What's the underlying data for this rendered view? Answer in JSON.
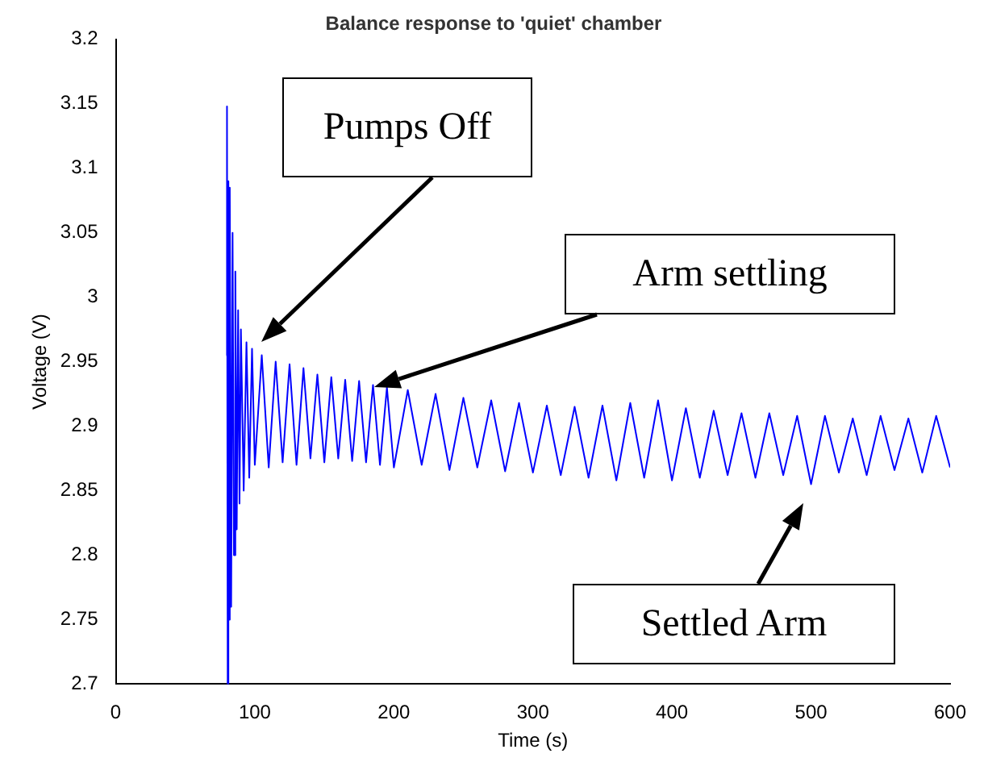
{
  "chart_data": {
    "type": "line",
    "title": "Balance response to 'quiet' chamber",
    "xlabel": "Time (s)",
    "ylabel": "Voltage (V)",
    "x": [
      79.5,
      80,
      80.5,
      81,
      81.5,
      82,
      83,
      84,
      85,
      86,
      87,
      88,
      89,
      90,
      92,
      94,
      96,
      98,
      100,
      105,
      110,
      115,
      120,
      125,
      130,
      135,
      140,
      145,
      150,
      155,
      160,
      165,
      170,
      175,
      180,
      185,
      190,
      195,
      200,
      210,
      220,
      230,
      240,
      250,
      260,
      270,
      280,
      290,
      300,
      310,
      320,
      330,
      340,
      350,
      360,
      370,
      380,
      390,
      400,
      410,
      420,
      430,
      440,
      450,
      460,
      470,
      480,
      490,
      500,
      510,
      520,
      530,
      540,
      550,
      560,
      570,
      580,
      590,
      600
    ],
    "series": [
      {
        "color": "#0000ff",
        "values": [
          2.955,
          3.148,
          2.7,
          3.09,
          2.75,
          3.085,
          2.76,
          3.05,
          2.8,
          3.02,
          2.82,
          2.99,
          2.84,
          2.975,
          2.85,
          2.965,
          2.86,
          2.96,
          2.87,
          2.955,
          2.868,
          2.95,
          2.872,
          2.948,
          2.87,
          2.945,
          2.875,
          2.94,
          2.872,
          2.938,
          2.875,
          2.936,
          2.873,
          2.935,
          2.872,
          2.932,
          2.87,
          2.93,
          2.868,
          2.928,
          2.87,
          2.925,
          2.866,
          2.922,
          2.868,
          2.92,
          2.865,
          2.918,
          2.864,
          2.916,
          2.862,
          2.915,
          2.86,
          2.916,
          2.858,
          2.918,
          2.86,
          2.92,
          2.858,
          2.914,
          2.86,
          2.912,
          2.862,
          2.91,
          2.86,
          2.91,
          2.862,
          2.908,
          2.855,
          2.908,
          2.864,
          2.906,
          2.862,
          2.908,
          2.866,
          2.906,
          2.864,
          2.908,
          2.868
        ]
      }
    ],
    "xlim": [
      0,
      600
    ],
    "xticks": [
      0,
      100,
      200,
      300,
      400,
      500,
      600
    ],
    "ylim": [
      2.7,
      3.2
    ],
    "yticks": [
      2.7,
      2.75,
      2.8,
      2.85,
      2.9,
      2.95,
      3,
      3.05,
      3.1,
      3.15,
      3.2
    ],
    "grid": false,
    "legend": false,
    "marker": "none",
    "line_style": "solid",
    "annotations": [
      "Pumps Off",
      "Arm settling",
      "Settled Arm"
    ]
  }
}
